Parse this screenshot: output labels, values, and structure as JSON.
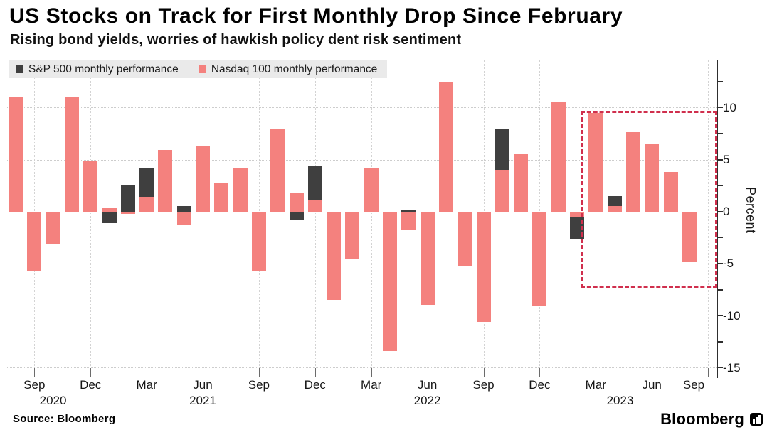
{
  "header": {
    "title": "US Stocks on Track for First Monthly Drop Since February",
    "subtitle": "Rising bond yields, worries of hawkish policy dent risk sentiment"
  },
  "legend": {
    "sp500": "S&P 500 monthly performance",
    "nasdaq": "Nasdaq 100 monthly performance"
  },
  "footer": {
    "source": "Source: Bloomberg",
    "logo": "Bloomberg"
  },
  "colors": {
    "sp500_bar": "#3f3f3f",
    "nasdaq_bar": "#f4817e",
    "highlight_box": "#d02f4d",
    "legend_bg": "#eaeaea"
  },
  "chart_data": {
    "type": "bar",
    "title": "US Stocks on Track for First Monthly Drop Since February",
    "subtitle": "Rising bond yields, worries of hawkish policy dent risk sentiment",
    "ylabel": "Percent",
    "ylim": [
      -15.4,
      14.5
    ],
    "yticks": [
      10,
      5,
      0,
      -5,
      -10,
      -15
    ],
    "y_minor_tick_step": 2.5,
    "grid": "dotted",
    "legend_position": "top-left",
    "months": [
      "Aug 2020",
      "Sep 2020",
      "Oct 2020",
      "Nov 2020",
      "Dec 2020",
      "Jan 2021",
      "Feb 2021",
      "Mar 2021",
      "Apr 2021",
      "May 2021",
      "Jun 2021",
      "Jul 2021",
      "Aug 2021",
      "Sep 2021",
      "Oct 2021",
      "Nov 2021",
      "Dec 2021",
      "Jan 2022",
      "Feb 2022",
      "Mar 2022",
      "Apr 2022",
      "May 2022",
      "Jun 2022",
      "Jul 2022",
      "Aug 2022",
      "Sep 2022",
      "Oct 2022",
      "Nov 2022",
      "Dec 2022",
      "Jan 2023",
      "Feb 2023",
      "Mar 2023",
      "Apr 2023",
      "May 2023",
      "Jun 2023",
      "Jul 2023",
      "Aug 2023"
    ],
    "series": [
      {
        "name": "S&P 500 monthly performance",
        "color": "#3f3f3f",
        "values": [
          7.0,
          -3.9,
          -2.8,
          10.8,
          3.7,
          -1.1,
          2.6,
          4.2,
          5.2,
          0.5,
          2.2,
          2.3,
          2.9,
          -4.8,
          6.9,
          -0.8,
          4.4,
          -5.3,
          -3.1,
          3.6,
          -8.8,
          0.0,
          -8.4,
          9.1,
          -4.2,
          -9.3,
          8.0,
          5.4,
          -5.9,
          6.2,
          -2.6,
          3.5,
          1.5,
          0.2,
          6.5,
          3.1,
          -4.5
        ]
      },
      {
        "name": "Nasdaq 100 monthly performance",
        "color": "#f4817e",
        "values": [
          11.0,
          -5.7,
          -3.2,
          11.0,
          4.9,
          0.3,
          -0.2,
          1.4,
          5.9,
          -1.3,
          6.3,
          2.8,
          4.2,
          -5.7,
          7.9,
          1.8,
          1.1,
          -8.5,
          -4.6,
          4.2,
          -13.4,
          -1.7,
          -9.0,
          12.5,
          -5.2,
          -10.6,
          4.0,
          5.5,
          -9.1,
          10.6,
          -0.5,
          9.5,
          0.5,
          7.6,
          6.5,
          3.8,
          -4.9
        ]
      }
    ],
    "xticks": [
      {
        "slot": 1,
        "label": "Sep"
      },
      {
        "slot": 4,
        "label": "Dec"
      },
      {
        "slot": 7,
        "label": "Mar"
      },
      {
        "slot": 10,
        "label": "Jun"
      },
      {
        "slot": 13,
        "label": "Sep"
      },
      {
        "slot": 16,
        "label": "Dec"
      },
      {
        "slot": 19,
        "label": "Mar"
      },
      {
        "slot": 22,
        "label": "Jun"
      },
      {
        "slot": 25,
        "label": "Sep"
      },
      {
        "slot": 28,
        "label": "Dec"
      },
      {
        "slot": 31,
        "label": "Mar"
      },
      {
        "slot": 34,
        "label": "Jun"
      },
      {
        "slot": 37,
        "label": "Sep"
      }
    ],
    "year_labels": [
      {
        "label": "2020",
        "slot": 2
      },
      {
        "label": "2021",
        "slot": 10
      },
      {
        "label": "2022",
        "slot": 22
      },
      {
        "label": "2023",
        "slot": 32.3
      }
    ],
    "annotations": [
      {
        "type": "dashed-box",
        "color": "#d02f4d",
        "from_slot": 30.2,
        "to_slot": 37.25,
        "from_value": 9.7,
        "to_value": -6.9,
        "meaning": "highlights Mar 2023 through current month"
      }
    ]
  }
}
